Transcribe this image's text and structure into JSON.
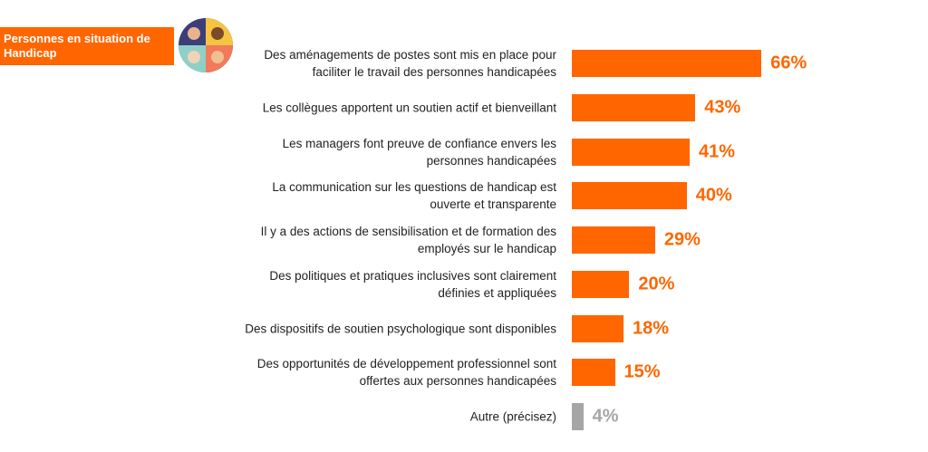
{
  "chart_data": {
    "type": "bar",
    "orientation": "horizontal",
    "title": "Personnes en situation de\nHandicap",
    "categories": [
      "Des aménagements de postes sont mis en place pour\nfaciliter le travail des personnes handicapées",
      "Les collègues apportent un soutien actif et bienveillant",
      "Les managers font preuve de confiance envers les\npersonnes handicapées",
      "La communication sur les questions de handicap est\nouverte et transparente",
      "Il y a des actions de sensibilisation et de formation des\nemployés sur le handicap",
      "Des politiques et pratiques inclusives sont clairement\ndéfinies et appliquées",
      "Des dispositifs de soutien psychologique sont disponibles",
      "Des opportunités de développement professionnel sont\noffertes aux personnes handicapées",
      "Autre (précisez)"
    ],
    "values": [
      66,
      43,
      41,
      40,
      29,
      20,
      18,
      15,
      4
    ],
    "value_labels": [
      "66%",
      "43%",
      "41%",
      "40%",
      "29%",
      "20%",
      "18%",
      "15%",
      "4%"
    ],
    "colors": [
      "#ff6600",
      "#ff6600",
      "#ff6600",
      "#ff6600",
      "#ff6600",
      "#ff6600",
      "#ff6600",
      "#ff6600",
      "#a6a6a6"
    ]
  }
}
